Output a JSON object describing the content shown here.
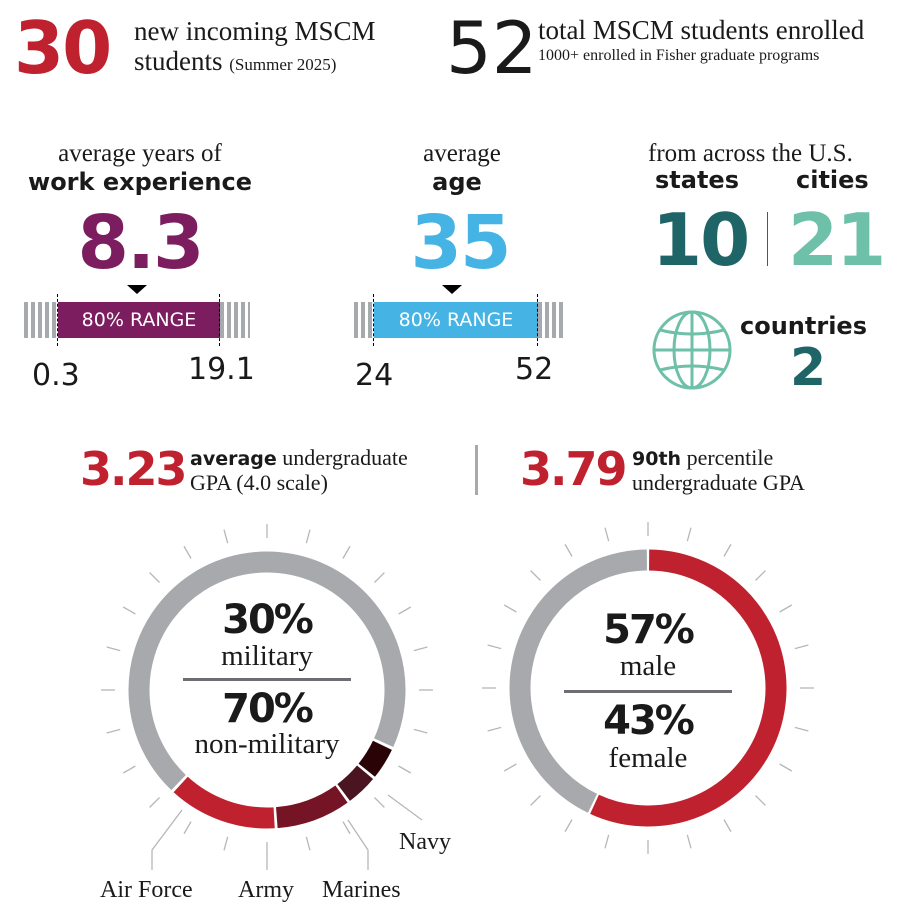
{
  "header": {
    "incoming": {
      "number": "30",
      "line1": "new incoming MSCM",
      "line2": "students",
      "note": "(Summer 2025)"
    },
    "total": {
      "number": "52",
      "line1": "total MSCM students enrolled",
      "line2": "1000+ enrolled in Fisher graduate programs"
    }
  },
  "experience": {
    "label1": "average years of",
    "label2": "work experience",
    "value": "8.3",
    "range_label": "80% RANGE",
    "low": "0.3",
    "high": "19.1",
    "color": "#7b1d5e"
  },
  "age": {
    "label1": "average",
    "label2": "age",
    "value": "35",
    "range_label": "80% RANGE",
    "low": "24",
    "high": "52",
    "color": "#45b3e3"
  },
  "geography": {
    "title": "from across the U.S.",
    "states_label": "states",
    "states": "10",
    "cities_label": "cities",
    "cities": "21",
    "countries_label": "countries",
    "countries": "2",
    "icon": "globe-icon",
    "dark": "#1f6568",
    "light": "#6ec0a8"
  },
  "gpa": {
    "avg": {
      "value": "3.23",
      "bold": "average",
      "rest": " undergraduate",
      "line2": "GPA (4.0 scale)"
    },
    "p90": {
      "value": "3.79",
      "bold": "90th",
      "rest": " percentile",
      "line2": "undergraduate GPA"
    },
    "color": "#c0212f"
  },
  "military": {
    "pct1": "30%",
    "label1": "military",
    "pct2": "70%",
    "label2": "non-military",
    "segments": [
      {
        "name": "Navy",
        "value": 4,
        "color": "#2a0306"
      },
      {
        "name": "Marines",
        "value": 4,
        "color": "#4a1520"
      },
      {
        "name": "Army",
        "value": 9,
        "color": "#751424"
      },
      {
        "name": "Air Force",
        "value": 13,
        "color": "#c0212f"
      }
    ],
    "rest_color": "#a7a9ac"
  },
  "gender": {
    "pct1": "57%",
    "label1": "male",
    "pct2": "43%",
    "label2": "female",
    "male": 57,
    "female": 43,
    "male_color": "#c0212f",
    "female_color": "#a7a9ac"
  }
}
